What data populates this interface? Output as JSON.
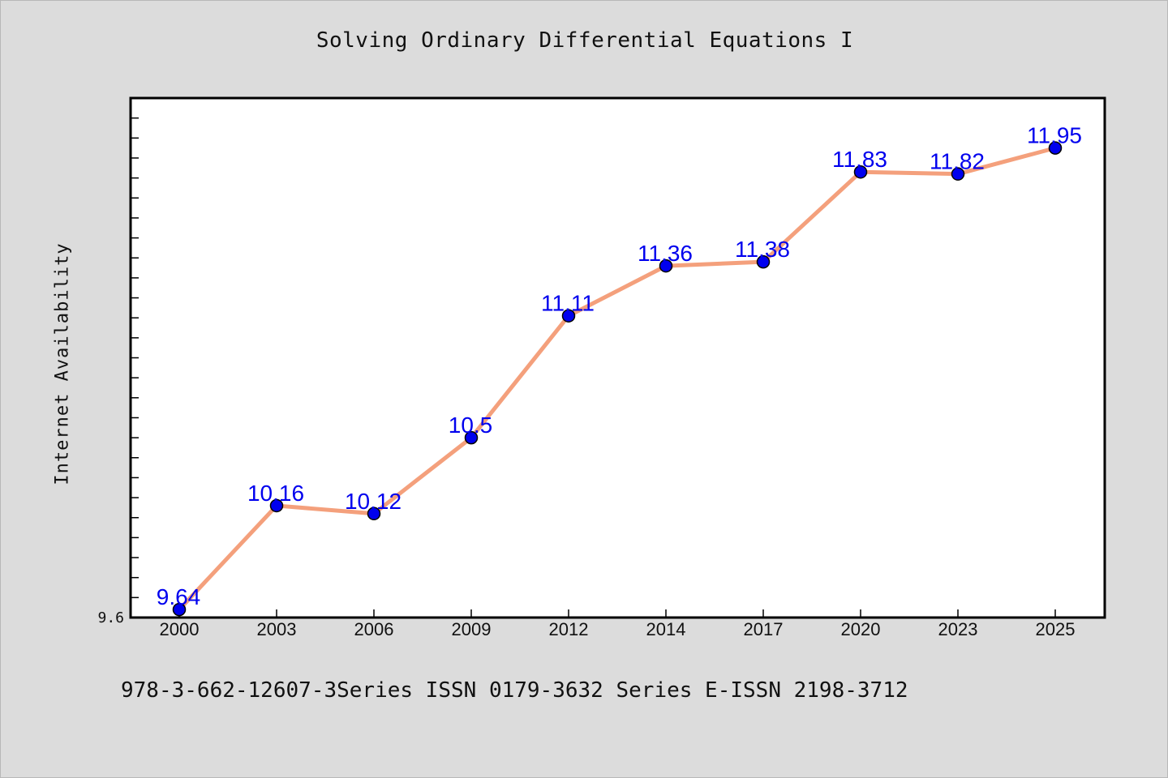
{
  "chart_data": {
    "type": "line",
    "title": "Solving Ordinary Differential Equations I",
    "ylabel": "Internet Availability",
    "xlabel": "",
    "categories": [
      "2000",
      "2003",
      "2006",
      "2009",
      "2012",
      "2014",
      "2017",
      "2020",
      "2023",
      "2025"
    ],
    "series": [
      {
        "values": [
          9.64,
          10.16,
          10.12,
          10.5,
          11.11,
          11.36,
          11.38,
          11.83,
          11.82,
          11.95
        ],
        "data_labels": [
          "9.64",
          "10.16",
          "10.12",
          "10.5",
          "11.11",
          "11.36",
          "11.38",
          "11.83",
          "11.82",
          "11.95"
        ],
        "line_color": "#f4a07c",
        "marker_color": "#0000ee"
      }
    ],
    "ylim": [
      9.6,
      12.2
    ],
    "y_tick_labels": [
      "9.6"
    ],
    "y_minor_tick_step": 0.1,
    "grid": false,
    "legend": "none"
  },
  "footer": "978-3-662-12607-3Series ISSN 0179-3632 Series E-ISSN 2198-3712",
  "colors": {
    "background": "#dcdcdc",
    "plot_background": "#ffffff",
    "line": "#f4a07c",
    "markers": "#0000ee",
    "data_labels": "#0000ee"
  }
}
